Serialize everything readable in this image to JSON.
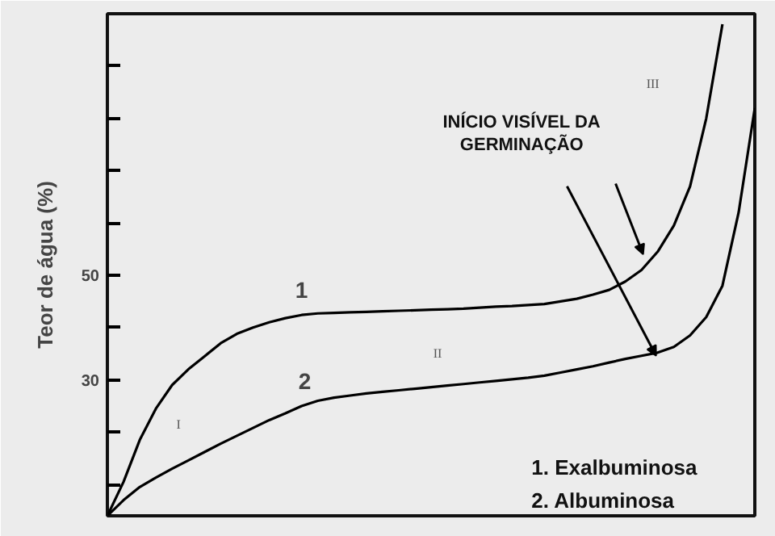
{
  "chart_data": {
    "type": "line",
    "ylabel": "Teor de água (%)",
    "categories": [
      null,
      null,
      null,
      null,
      null,
      null,
      null,
      null,
      null,
      null,
      null,
      null,
      null,
      null,
      null,
      null,
      null,
      null,
      null,
      null,
      null,
      null,
      null,
      null,
      null,
      null,
      null,
      null,
      null,
      null,
      null,
      null,
      null,
      null,
      null,
      null,
      null,
      null,
      null,
      null,
      null
    ],
    "series": [
      {
        "name": "1",
        "color": "#000000",
        "values": [
          4,
          10.5,
          18.5,
          24.5,
          29,
          32,
          34.5,
          37,
          38.8,
          40,
          41,
          41.8,
          42.4,
          42.7,
          42.8,
          42.9,
          43,
          43.1,
          43.2,
          43.3,
          43.4,
          43.5,
          43.6,
          43.8,
          44,
          44.1,
          44.3,
          44.5,
          45,
          45.5,
          46.3,
          47.2,
          48.8,
          51,
          54.5,
          59.5,
          67,
          80,
          98,
          null,
          null
        ]
      },
      {
        "name": "2",
        "color": "#000000",
        "values": [
          4,
          7,
          9.5,
          11.3,
          13,
          14.6,
          16.2,
          17.8,
          19.3,
          20.8,
          22.3,
          23.6,
          25,
          26,
          26.6,
          27,
          27.4,
          27.7,
          28,
          28.3,
          28.6,
          28.9,
          29.2,
          29.5,
          29.8,
          30.1,
          30.4,
          30.8,
          31.4,
          32,
          32.6,
          33.3,
          34,
          34.6,
          35.2,
          36.3,
          38.5,
          42,
          48,
          62,
          82
        ]
      }
    ],
    "ylim": [
      4,
      100
    ],
    "yticks": [
      {
        "value": 10,
        "label": null
      },
      {
        "value": 20,
        "label": null
      },
      30,
      {
        "value": 40,
        "label": null
      },
      50,
      {
        "value": 60,
        "label": null
      },
      {
        "value": 70,
        "label": null
      },
      {
        "value": 80,
        "label": null
      },
      {
        "value": 90,
        "label": null
      }
    ],
    "tick_labels": "y",
    "grid": false,
    "marker": "none",
    "line_style": "solid",
    "annotations": [
      "I",
      "II",
      "III",
      "INÍCIO VISÍVEL DA\nGERMINAÇÃO",
      "1. Exalbuminosa",
      "2. Albuminosa"
    ]
  }
}
